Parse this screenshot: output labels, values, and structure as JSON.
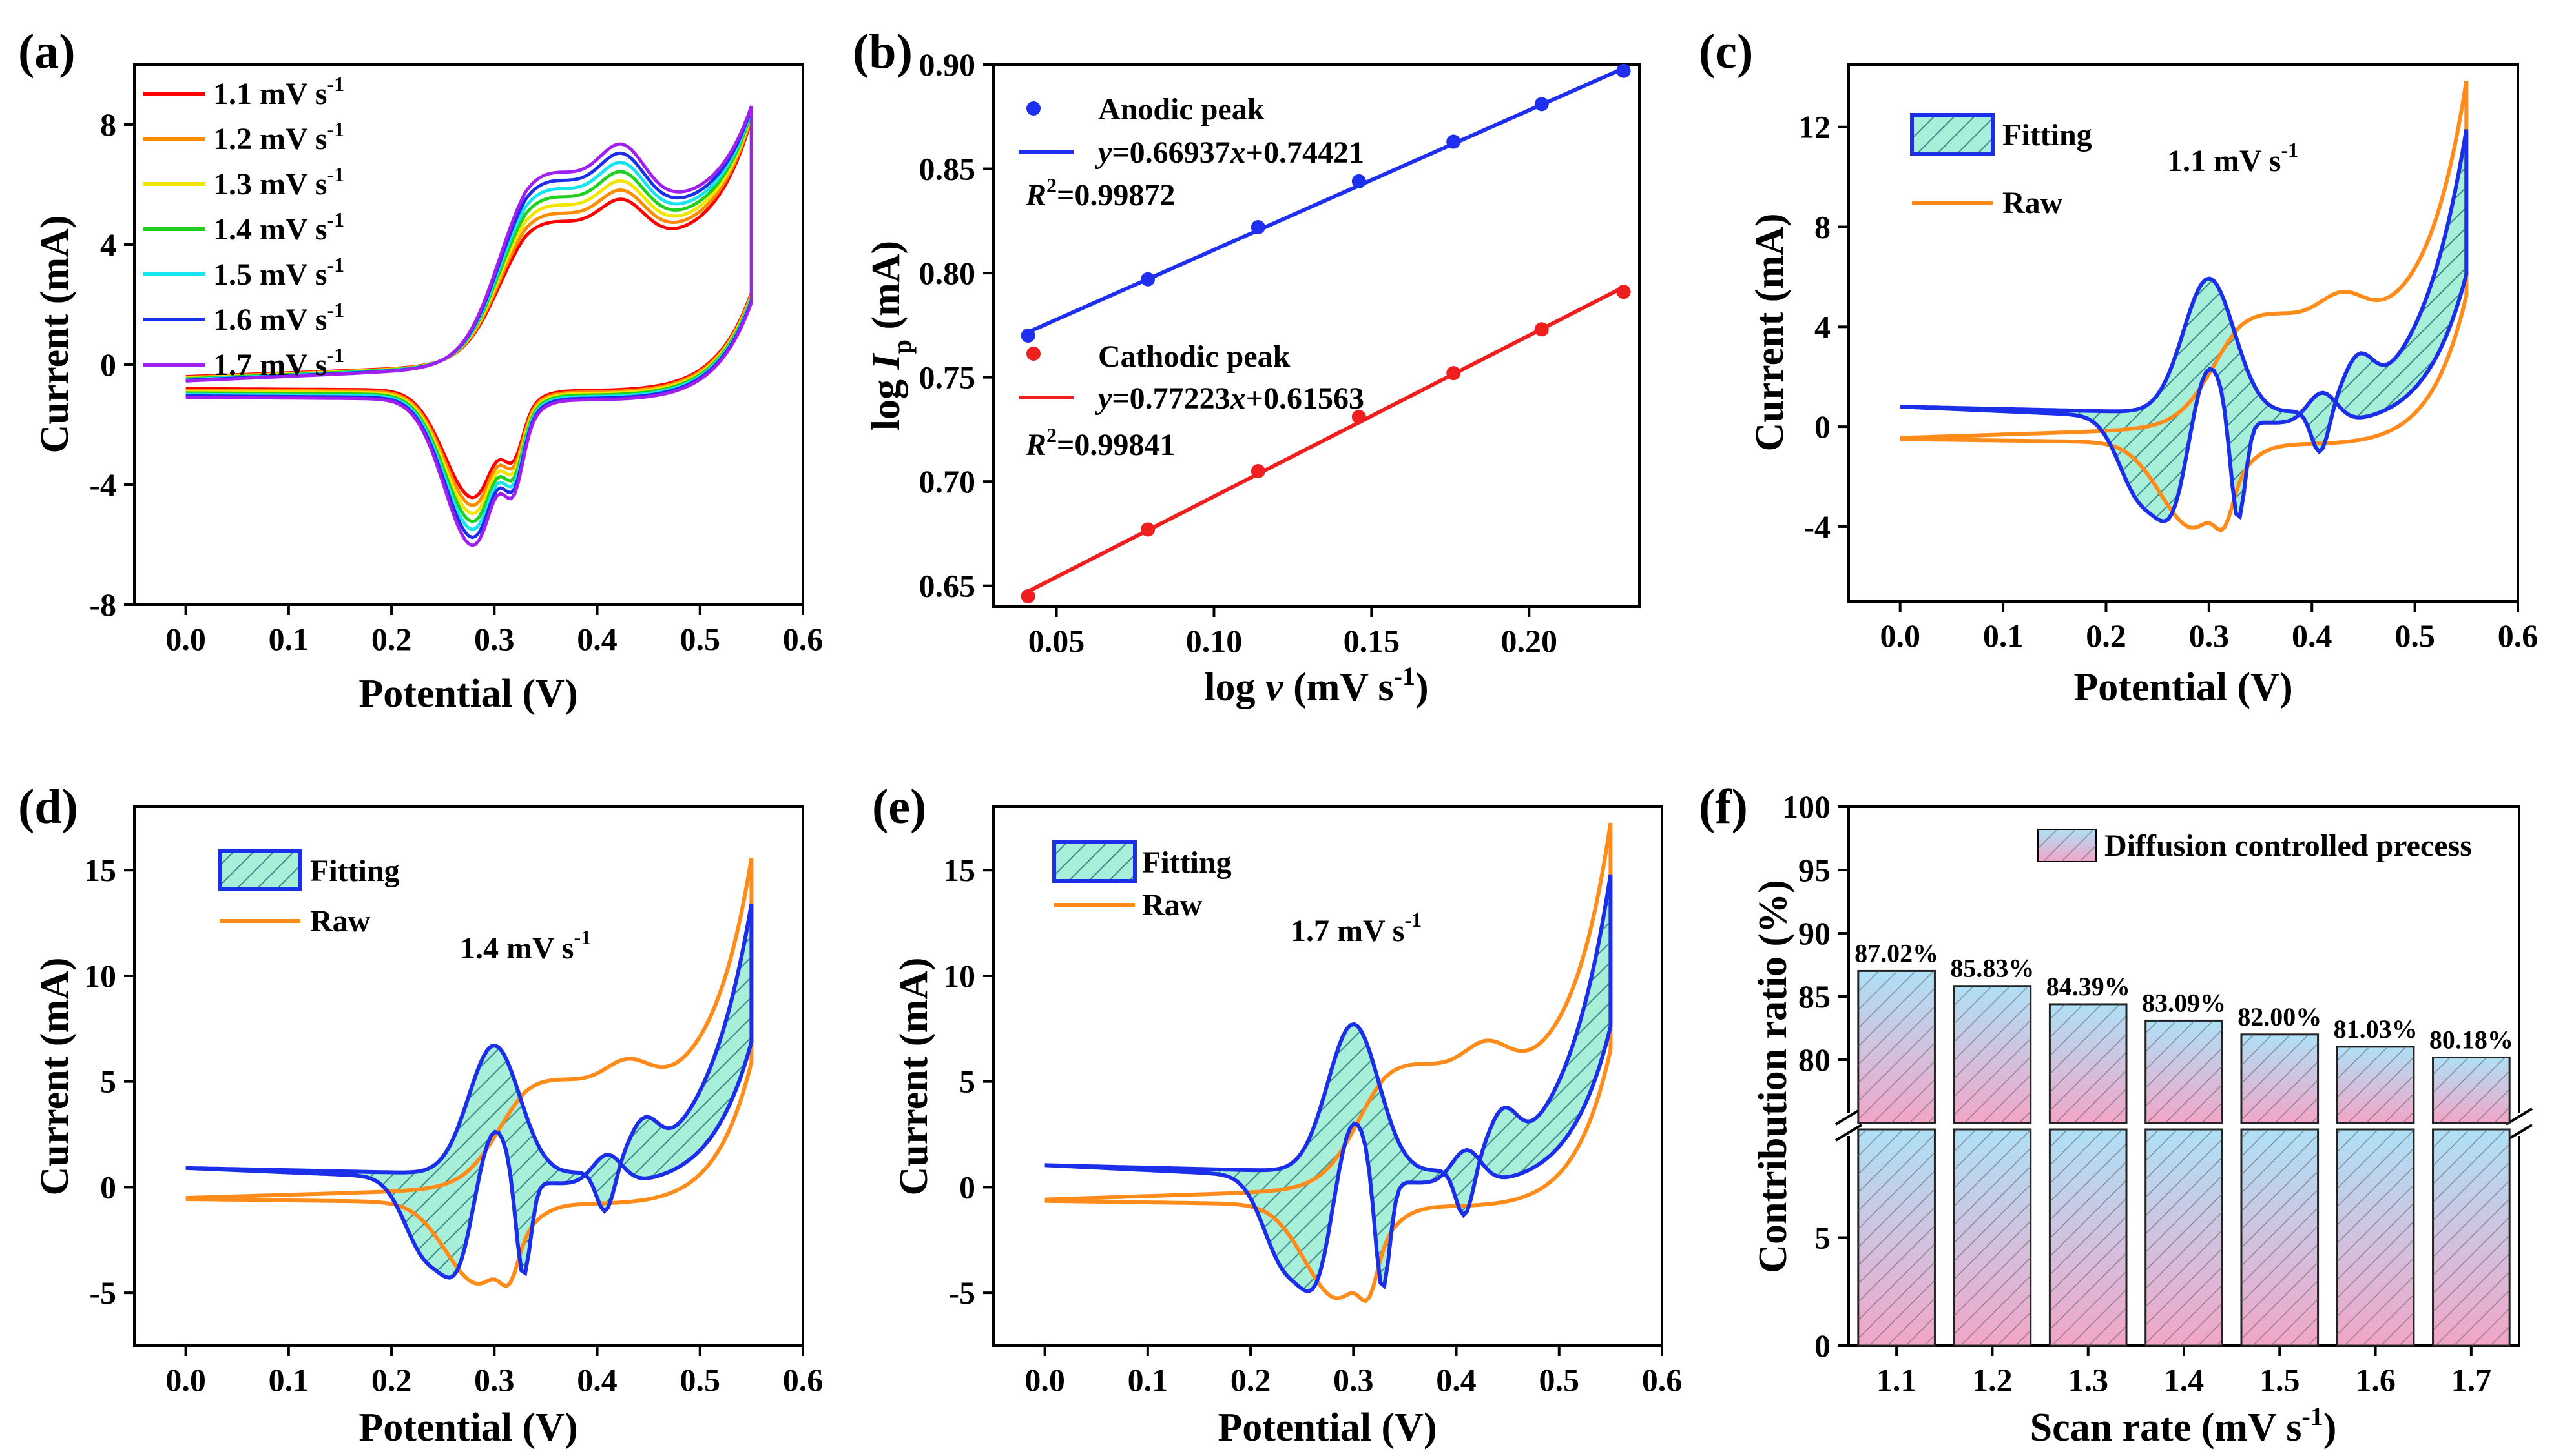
{
  "chart_data": [
    {
      "id": "a",
      "type": "line",
      "panel_label": "(a)",
      "xlabel": "Potential (V)",
      "ylabel": "Current (mA)",
      "xlim": [
        -0.05,
        0.6
      ],
      "ylim": [
        -8,
        10
      ],
      "xticks": [
        0.0,
        0.1,
        0.2,
        0.3,
        0.4,
        0.5,
        0.6
      ],
      "xtick_labels": [
        "0.0",
        "0.1",
        "0.2",
        "0.3",
        "0.4",
        "0.5",
        "0.6"
      ],
      "yticks": [
        -8,
        -4,
        0,
        4,
        8
      ],
      "ytick_labels": [
        "-8",
        "-4",
        "0",
        "4",
        "8"
      ],
      "series": [
        {
          "name": "1.1 mV s-1",
          "rate": 1.1,
          "color": "#ff0000",
          "legend": {
            "value": "1.1 mV s",
            "sup": "-1"
          }
        },
        {
          "name": "1.2 mV s-1",
          "rate": 1.2,
          "color": "#ff8c00",
          "legend": {
            "value": "1.2 mV s",
            "sup": "-1"
          }
        },
        {
          "name": "1.3 mV s-1",
          "rate": 1.3,
          "color": "#f2e600",
          "legend": {
            "value": "1.3 mV s",
            "sup": "-1"
          }
        },
        {
          "name": "1.4 mV s-1",
          "rate": 1.4,
          "color": "#22d11f",
          "legend": {
            "value": "1.4 mV s",
            "sup": "-1"
          }
        },
        {
          "name": "1.5 mV s-1",
          "rate": 1.5,
          "color": "#18e4f0",
          "legend": {
            "value": "1.5 mV s",
            "sup": "-1"
          }
        },
        {
          "name": "1.6 mV s-1",
          "rate": 1.6,
          "color": "#1c2fe8",
          "legend": {
            "value": "1.6 mV s",
            "sup": "-1"
          }
        },
        {
          "name": "1.7 mV s-1",
          "rate": 1.7,
          "color": "#a020f0",
          "legend": {
            "value": "1.7 mV s",
            "sup": "-1"
          }
        }
      ]
    },
    {
      "id": "b",
      "type": "scatter",
      "panel_label": "(b)",
      "xlabel": {
        "prefix": "log ",
        "italic": "v",
        "unit": " (mV s",
        "sup": "-1",
        "close": ")"
      },
      "ylabel": {
        "prefix": "log ",
        "italic": "I",
        "sub": "p",
        "unit": " (mA)"
      },
      "xlim": [
        0.03,
        0.235
      ],
      "ylim": [
        0.64,
        0.9
      ],
      "xticks": [
        0.05,
        0.1,
        0.15,
        0.2
      ],
      "xtick_labels": [
        "0.05",
        "0.10",
        "0.15",
        "0.20"
      ],
      "yticks": [
        0.65,
        0.7,
        0.75,
        0.8,
        0.85,
        0.9
      ],
      "ytick_labels": [
        "0.65",
        "0.70",
        "0.75",
        "0.80",
        "0.85",
        "0.90"
      ],
      "series": [
        {
          "name": "Anodic peak",
          "color": "#1f2ff0",
          "x": [
            0.041,
            0.079,
            0.114,
            0.146,
            0.176,
            0.204,
            0.23
          ],
          "y": [
            0.77,
            0.797,
            0.822,
            0.844,
            0.863,
            0.881,
            0.897
          ],
          "fit": {
            "slope": 0.66937,
            "intercept": 0.74421
          },
          "equation": {
            "y": "y",
            "rest": "=0.66937",
            "x": "x",
            "end": "+0.74421"
          },
          "r2": {
            "r": "R",
            "sup": "2",
            "value": "=0.99872"
          }
        },
        {
          "name": "Cathodic peak",
          "color": "#f01f1f",
          "x": [
            0.041,
            0.079,
            0.114,
            0.146,
            0.176,
            0.204,
            0.23
          ],
          "y": [
            0.645,
            0.677,
            0.705,
            0.731,
            0.752,
            0.773,
            0.791
          ],
          "fit": {
            "slope": 0.77223,
            "intercept": 0.61563
          },
          "equation": {
            "y": "y",
            "rest": "=0.77223",
            "x": "x",
            "end": "+0.61563"
          },
          "r2": {
            "r": "R",
            "sup": "2",
            "value": "=0.99841"
          }
        }
      ]
    },
    {
      "id": "c",
      "type": "line",
      "panel_label": "(c)",
      "xlabel": "Potential (V)",
      "ylabel": "Current (mA)",
      "rate_label": {
        "value": "1.1 mV s",
        "sup": "-1"
      },
      "xlim": [
        -0.05,
        0.6
      ],
      "ylim": [
        -7,
        14.5
      ],
      "xticks": [
        0.0,
        0.1,
        0.2,
        0.3,
        0.4,
        0.5,
        0.6
      ],
      "xtick_labels": [
        "0.0",
        "0.1",
        "0.2",
        "0.3",
        "0.4",
        "0.5",
        "0.6"
      ],
      "yticks": [
        -4,
        0,
        4,
        8,
        12
      ],
      "ytick_labels": [
        "-4",
        "0",
        "4",
        "8",
        "12"
      ],
      "legend": [
        {
          "label": "Fitting",
          "kind": "hatched-fill"
        },
        {
          "label": "Raw",
          "kind": "line"
        }
      ],
      "params": {
        "scale": 1.0,
        "end": 12.6
      }
    },
    {
      "id": "d",
      "type": "line",
      "panel_label": "(d)",
      "xlabel": "Potential (V)",
      "ylabel": "Current (mA)",
      "rate_label": {
        "value": "1.4 mV s",
        "sup": "-1"
      },
      "xlim": [
        -0.05,
        0.6
      ],
      "ylim": [
        -7.5,
        18
      ],
      "xticks": [
        0.0,
        0.1,
        0.2,
        0.3,
        0.4,
        0.5,
        0.6
      ],
      "xtick_labels": [
        "0.0",
        "0.1",
        "0.2",
        "0.3",
        "0.4",
        "0.5",
        "0.6"
      ],
      "yticks": [
        -5,
        0,
        5,
        10,
        15
      ],
      "ytick_labels": [
        "-5",
        "0",
        "5",
        "10",
        "15"
      ],
      "legend": [
        {
          "label": "Fitting",
          "kind": "hatched-fill"
        },
        {
          "label": "Raw",
          "kind": "line"
        }
      ],
      "params": {
        "scale": 1.13,
        "end": 14.2
      }
    },
    {
      "id": "e",
      "type": "line",
      "panel_label": "(e)",
      "xlabel": "Potential (V)",
      "ylabel": "Current (mA)",
      "rate_label": {
        "value": "1.7 mV s",
        "sup": "-1"
      },
      "xlim": [
        -0.05,
        0.6
      ],
      "ylim": [
        -7.5,
        18
      ],
      "xticks": [
        0.0,
        0.1,
        0.2,
        0.3,
        0.4,
        0.5,
        0.6
      ],
      "xtick_labels": [
        "0.0",
        "0.1",
        "0.2",
        "0.3",
        "0.4",
        "0.5",
        "0.6"
      ],
      "yticks": [
        -5,
        0,
        5,
        10,
        15
      ],
      "ytick_labels": [
        "-5",
        "0",
        "5",
        "10",
        "15"
      ],
      "legend": [
        {
          "label": "Fitting",
          "kind": "hatched-fill"
        },
        {
          "label": "Raw",
          "kind": "line"
        }
      ],
      "params": {
        "scale": 1.3,
        "end": 15.7
      }
    },
    {
      "id": "f",
      "type": "bar",
      "panel_label": "(f)",
      "xlabel": {
        "value": "Scan rate (mV s",
        "sup": "-1",
        "close": ")"
      },
      "ylabel": "Contribution ratio (%)",
      "categories": [
        "1.1",
        "1.2",
        "1.3",
        "1.4",
        "1.5",
        "1.6",
        "1.7"
      ],
      "values": [
        87.02,
        85.83,
        84.39,
        83.09,
        82.0,
        81.03,
        80.18
      ],
      "value_labels": [
        "87.02%",
        "85.83%",
        "84.39%",
        "83.09%",
        "82.00%",
        "81.03%",
        "80.18%"
      ],
      "legend": "Diffusion controlled precess",
      "axis_break": {
        "lower": [
          0,
          10
        ],
        "upper": [
          75,
          100
        ]
      },
      "yticks": [
        0,
        5,
        80,
        85,
        90,
        95,
        100
      ],
      "ytick_labels": [
        "0",
        "5",
        "80",
        "85",
        "90",
        "95",
        "100"
      ]
    }
  ]
}
